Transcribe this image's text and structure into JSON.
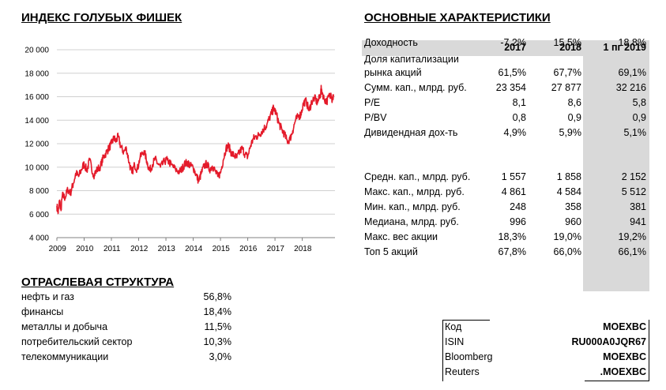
{
  "titles": {
    "index": "ИНДЕКС ГОЛУБЫХ ФИШЕК",
    "sector": "ОТРАСЛЕВАЯ СТРУКТУРА",
    "characteristics": "ОСНОВНЫЕ ХАРАКТЕРИСТИКИ"
  },
  "chart_data": {
    "type": "line",
    "title": "ИНДЕКС ГОЛУБЫХ ФИШЕК",
    "ylim": [
      4000,
      20000
    ],
    "yticks": [
      "20 000",
      "18 000",
      "16 000",
      "14 000",
      "12 000",
      "10 000",
      "8 000",
      "6 000",
      "4 000"
    ],
    "xticks": [
      "2009",
      "2010",
      "2011",
      "2012",
      "2013",
      "2014",
      "2015",
      "2016",
      "2017",
      "2018"
    ],
    "grid": true,
    "series_color": "#e41a2a",
    "points": [
      [
        2009.0,
        6700
      ],
      [
        2009.05,
        6100
      ],
      [
        2009.1,
        7200
      ],
      [
        2009.15,
        6300
      ],
      [
        2009.2,
        7600
      ],
      [
        2009.3,
        7400
      ],
      [
        2009.4,
        8100
      ],
      [
        2009.5,
        7800
      ],
      [
        2009.6,
        8600
      ],
      [
        2009.7,
        9500
      ],
      [
        2009.8,
        9200
      ],
      [
        2009.9,
        9800
      ],
      [
        2010.0,
        10300
      ],
      [
        2010.1,
        9700
      ],
      [
        2010.2,
        10600
      ],
      [
        2010.35,
        9300
      ],
      [
        2010.45,
        9700
      ],
      [
        2010.6,
        10100
      ],
      [
        2010.7,
        10800
      ],
      [
        2010.8,
        11200
      ],
      [
        2010.9,
        11600
      ],
      [
        2011.0,
        12000
      ],
      [
        2011.1,
        12500
      ],
      [
        2011.15,
        12200
      ],
      [
        2011.25,
        12600
      ],
      [
        2011.35,
        11700
      ],
      [
        2011.45,
        11300
      ],
      [
        2011.55,
        11600
      ],
      [
        2011.65,
        10400
      ],
      [
        2011.75,
        9500
      ],
      [
        2011.85,
        10200
      ],
      [
        2011.95,
        9800
      ],
      [
        2012.05,
        10800
      ],
      [
        2012.2,
        11400
      ],
      [
        2012.3,
        10500
      ],
      [
        2012.4,
        9700
      ],
      [
        2012.5,
        10200
      ],
      [
        2012.6,
        10700
      ],
      [
        2012.7,
        10300
      ],
      [
        2012.8,
        10000
      ],
      [
        2012.95,
        10500
      ],
      [
        2013.05,
        10600
      ],
      [
        2013.2,
        10200
      ],
      [
        2013.35,
        9800
      ],
      [
        2013.5,
        9600
      ],
      [
        2013.6,
        9900
      ],
      [
        2013.7,
        10300
      ],
      [
        2013.8,
        10400
      ],
      [
        2013.9,
        10100
      ],
      [
        2014.0,
        10000
      ],
      [
        2014.1,
        9400
      ],
      [
        2014.2,
        8800
      ],
      [
        2014.3,
        9500
      ],
      [
        2014.4,
        10100
      ],
      [
        2014.5,
        10300
      ],
      [
        2014.6,
        9800
      ],
      [
        2014.7,
        10100
      ],
      [
        2014.8,
        9700
      ],
      [
        2014.9,
        9200
      ],
      [
        2015.0,
        9500
      ],
      [
        2015.1,
        10600
      ],
      [
        2015.2,
        11600
      ],
      [
        2015.3,
        11800
      ],
      [
        2015.4,
        11200
      ],
      [
        2015.5,
        11000
      ],
      [
        2015.6,
        10800
      ],
      [
        2015.7,
        11300
      ],
      [
        2015.8,
        11600
      ],
      [
        2015.9,
        11100
      ],
      [
        2016.0,
        10900
      ],
      [
        2016.1,
        11800
      ],
      [
        2016.2,
        12400
      ],
      [
        2016.3,
        12600
      ],
      [
        2016.4,
        12700
      ],
      [
        2016.5,
        13000
      ],
      [
        2016.6,
        13300
      ],
      [
        2016.7,
        13600
      ],
      [
        2016.8,
        14200
      ],
      [
        2016.9,
        14700
      ],
      [
        2016.95,
        15100
      ],
      [
        2017.05,
        14500
      ],
      [
        2017.15,
        13700
      ],
      [
        2017.25,
        13200
      ],
      [
        2017.35,
        12800
      ],
      [
        2017.45,
        12200
      ],
      [
        2017.55,
        12400
      ],
      [
        2017.65,
        13100
      ],
      [
        2017.75,
        14000
      ],
      [
        2017.85,
        14300
      ],
      [
        2017.95,
        14500
      ],
      [
        2018.05,
        15500
      ],
      [
        2018.15,
        15600
      ],
      [
        2018.25,
        14800
      ],
      [
        2018.35,
        15600
      ],
      [
        2018.45,
        15900
      ],
      [
        2018.55,
        15500
      ],
      [
        2018.65,
        16000
      ],
      [
        2018.7,
        16700
      ],
      [
        2018.8,
        15800
      ],
      [
        2018.9,
        15600
      ],
      [
        2019.0,
        16100
      ],
      [
        2019.05,
        16300
      ],
      [
        2019.1,
        15600
      ],
      [
        2019.15,
        16200
      ]
    ]
  },
  "sector_structure": [
    {
      "name": "нефть и газ",
      "value": "56,8%"
    },
    {
      "name": "финансы",
      "value": "18,4%"
    },
    {
      "name": "металлы и добыча",
      "value": "11,5%"
    },
    {
      "name": "потребительский сектор",
      "value": "10,3%"
    },
    {
      "name": "телекоммуникации",
      "value": "3,0%"
    }
  ],
  "characteristics": {
    "columns": [
      "2017",
      "2018",
      "1 пг 2019"
    ],
    "rows": [
      {
        "label": "Доходность",
        "values": [
          "-7,2%",
          "15,5%",
          "18,8%"
        ]
      },
      {
        "label_pre": "Доля капитализации",
        "label": "рынка акций",
        "values": [
          "61,5%",
          "67,7%",
          "69,1%"
        ]
      },
      {
        "label": "Сумм. кап., млрд. руб.",
        "values": [
          "23 354",
          "27 877",
          "32 216"
        ]
      },
      {
        "label": "P/E",
        "values": [
          "8,1",
          "8,6",
          "5,8"
        ]
      },
      {
        "label": "P/BV",
        "values": [
          "0,8",
          "0,9",
          "0,9"
        ]
      },
      {
        "label": "Дивидендная дох-ть",
        "values": [
          "4,9%",
          "5,9%",
          "5,1%"
        ]
      },
      {
        "label": "Средн. кап., млрд. руб.",
        "values": [
          "1 557",
          "1 858",
          "2 152"
        ]
      },
      {
        "label": "Макс. кап., млрд. руб.",
        "values": [
          "4 861",
          "4 584",
          "5 512"
        ]
      },
      {
        "label": "Мин. кап., млрд. руб.",
        "values": [
          "248",
          "358",
          "381"
        ]
      },
      {
        "label": "Медиана, млрд. руб.",
        "values": [
          "996",
          "960",
          "941"
        ]
      },
      {
        "label": "Макс. вес акции",
        "values": [
          "18,3%",
          "19,0%",
          "19,2%"
        ]
      },
      {
        "label": "Топ 5 акций",
        "values": [
          "67,8%",
          "66,0%",
          "66,1%"
        ]
      }
    ]
  },
  "codes": [
    {
      "key": "Код",
      "value": "MOEXBC"
    },
    {
      "key": "ISIN",
      "value": "RU000A0JQR67"
    },
    {
      "key": "Bloomberg",
      "value": "MOEXBC"
    },
    {
      "key": "Reuters",
      "value": ".MOEXBC"
    }
  ]
}
